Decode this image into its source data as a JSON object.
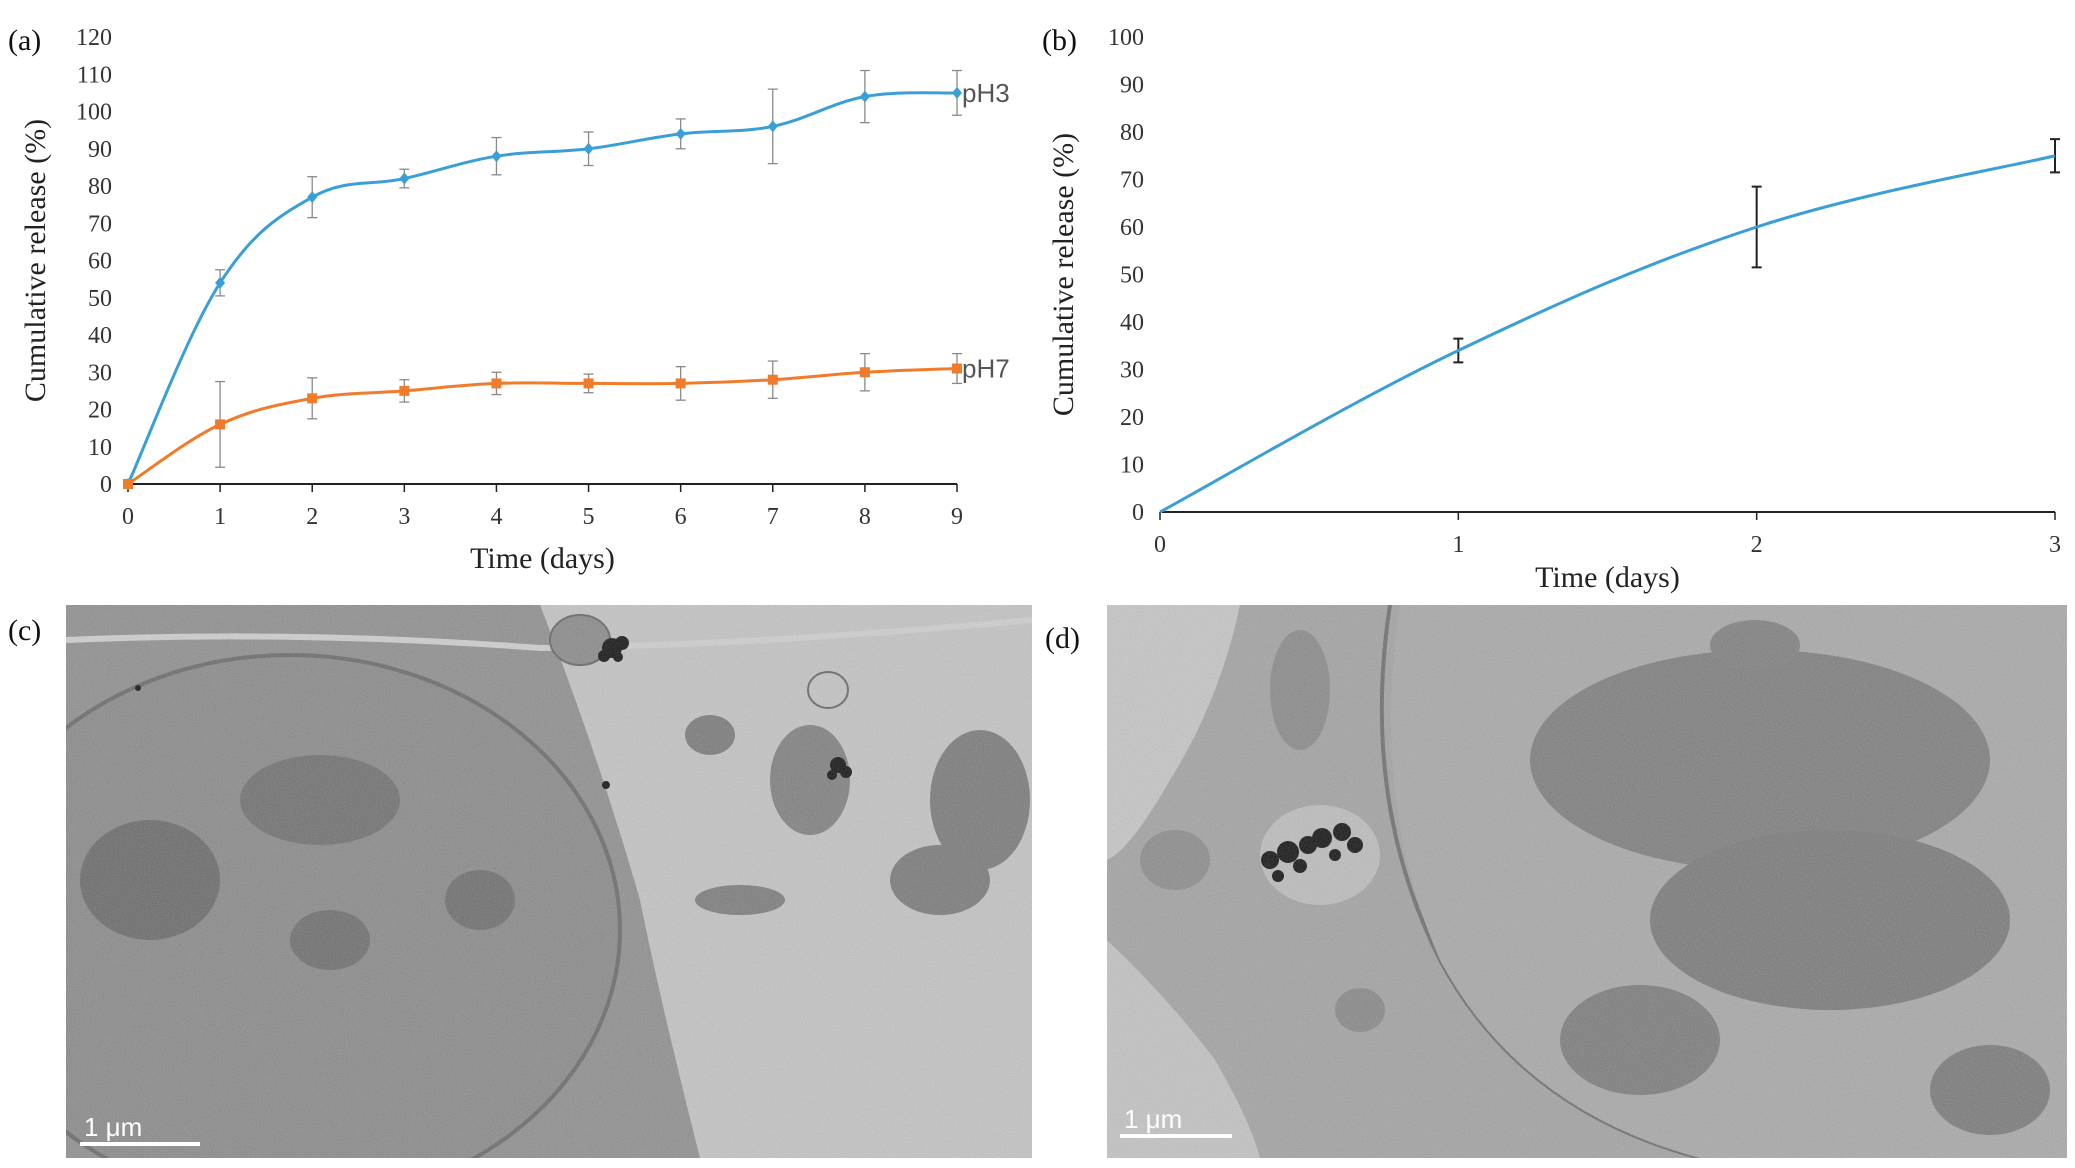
{
  "panels": {
    "a": "(a)",
    "b": "(b)",
    "c": "(c)",
    "d": "(d)"
  },
  "micrographs": {
    "c_scale": "1 μm",
    "d_scale": "1 μm"
  },
  "colors": {
    "pH3": "#3a9fd6",
    "pH7": "#f07c2b",
    "release": "#3a9fd6",
    "errorbar_b": "#222222",
    "tem_background": "#9a9a9a"
  },
  "chart_data": [
    {
      "type": "line",
      "panel": "a",
      "xlabel": "Time (days)",
      "ylabel": "Cumulative release (%)",
      "xlim": [
        0,
        9
      ],
      "ylim": [
        0,
        120
      ],
      "xticks": [
        0,
        1,
        2,
        3,
        4,
        5,
        6,
        7,
        8,
        9
      ],
      "yticks": [
        0,
        10,
        20,
        30,
        40,
        50,
        60,
        70,
        80,
        90,
        100,
        110,
        120
      ],
      "grid": false,
      "x": [
        0,
        1,
        2,
        3,
        4,
        5,
        6,
        7,
        8,
        9
      ],
      "series": [
        {
          "name": "pH3",
          "values": [
            0,
            54,
            77,
            82,
            88,
            90,
            94,
            96,
            104,
            105
          ],
          "errors": [
            0,
            3.5,
            5.5,
            2.5,
            5,
            4.5,
            4,
            10,
            7,
            6
          ]
        },
        {
          "name": "pH7",
          "values": [
            0,
            16,
            23,
            25,
            27,
            27,
            27,
            28,
            30,
            31
          ],
          "errors": [
            0,
            11.5,
            5.5,
            3,
            3,
            2.5,
            4.5,
            5,
            5,
            4
          ]
        }
      ]
    },
    {
      "type": "line",
      "panel": "b",
      "xlabel": "Time (days)",
      "ylabel": "Cumulative release (%)",
      "xlim": [
        0,
        3
      ],
      "ylim": [
        0,
        100
      ],
      "xticks": [
        0,
        1,
        2,
        3
      ],
      "yticks": [
        0,
        10,
        20,
        30,
        40,
        50,
        60,
        70,
        80,
        90,
        100
      ],
      "grid": false,
      "x": [
        0,
        1,
        2,
        3
      ],
      "series": [
        {
          "name": "",
          "values": [
            0,
            34,
            60,
            75
          ],
          "errors": [
            0,
            2.5,
            8.5,
            3.5
          ]
        }
      ]
    }
  ]
}
